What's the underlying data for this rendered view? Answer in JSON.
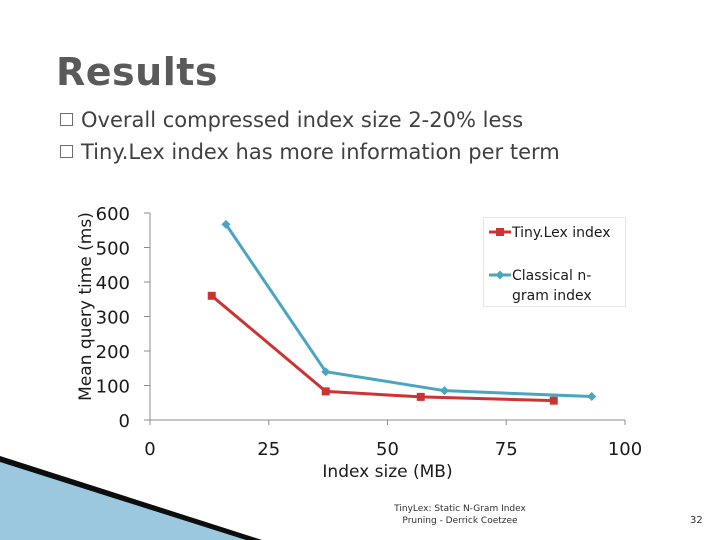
{
  "slide": {
    "title": "Results",
    "bullets": [
      "Overall compressed index size 2-20% less",
      "Tiny.Lex index has more information per term"
    ],
    "footer_line1": "TinyLex: Static N-Gram Index",
    "footer_line2": "Pruning - Derrick Coetzee",
    "page_number": "32"
  },
  "colors": {
    "tinylex": "#cc3333",
    "classical": "#4aa6be",
    "bar_dark": "#0d0d0d",
    "bar_light": "#9cc8df"
  },
  "chart_data": {
    "type": "line",
    "xlabel": "Index size (MB)",
    "ylabel": "Mean query time (ms)",
    "xlim": [
      0,
      100
    ],
    "ylim": [
      0,
      600
    ],
    "x_ticks": [
      0,
      25,
      50,
      75,
      100
    ],
    "y_ticks": [
      0,
      100,
      200,
      300,
      400,
      500,
      600
    ],
    "legend_position": "top-right",
    "series": [
      {
        "name": "Tiny.Lex index",
        "marker": "square",
        "color": "#cc3333",
        "points": [
          [
            13,
            360
          ],
          [
            37,
            83
          ],
          [
            57,
            67
          ],
          [
            85,
            56
          ]
        ]
      },
      {
        "name": "Classical n-gram index",
        "marker": "diamond",
        "color": "#4aa6be",
        "points": [
          [
            16,
            567
          ],
          [
            37,
            140
          ],
          [
            62,
            85
          ],
          [
            93,
            68
          ]
        ]
      }
    ]
  }
}
